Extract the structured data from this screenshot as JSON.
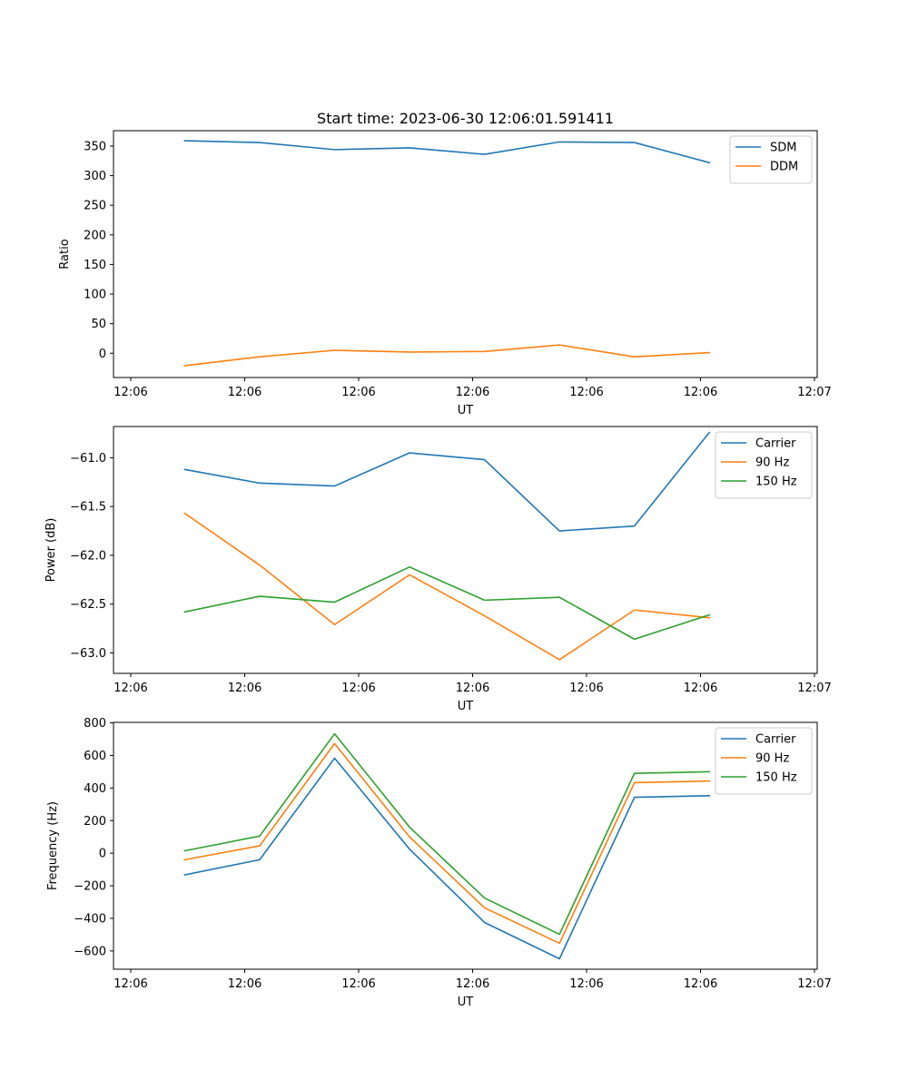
{
  "colors": {
    "blue": "#1f77b4",
    "orange": "#ff7f0e",
    "green": "#2ca02c"
  },
  "chart_data": [
    {
      "type": "line",
      "title": "Start time: 2023-06-30 12:06:01.591411",
      "xlabel": "UT",
      "ylabel": "Ratio",
      "xtick_labels": [
        "12:06",
        "12:06",
        "12:06",
        "12:06",
        "12:06",
        "12:06",
        "12:07"
      ],
      "yticks": [
        0,
        50,
        100,
        150,
        200,
        250,
        300,
        350
      ],
      "ylim": [
        -41,
        376
      ],
      "x": [
        1,
        2,
        3,
        4,
        5,
        6,
        7,
        8
      ],
      "grid": false,
      "legend": "upper right",
      "series": [
        {
          "name": "SDM",
          "color": "#1f77b4",
          "values": [
            359,
            356,
            344,
            347,
            336,
            357,
            356,
            322
          ]
        },
        {
          "name": "DDM",
          "color": "#ff7f0e",
          "values": [
            -21,
            -6,
            5,
            2,
            3,
            14,
            -6,
            1
          ]
        }
      ]
    },
    {
      "type": "line",
      "title": "",
      "xlabel": "UT",
      "ylabel": "Power (dB)",
      "xtick_labels": [
        "12:06",
        "12:06",
        "12:06",
        "12:06",
        "12:06",
        "12:06",
        "12:07"
      ],
      "yticks": [
        -63.0,
        -62.5,
        -62.0,
        -61.5,
        -61.0
      ],
      "ytick_labels": [
        "−63.0",
        "−62.5",
        "−62.0",
        "−61.5",
        "−61.0"
      ],
      "ylim": [
        -63.21,
        -60.68
      ],
      "x": [
        1,
        2,
        3,
        4,
        5,
        6,
        7,
        8
      ],
      "grid": false,
      "legend": "upper right",
      "series": [
        {
          "name": "Carrier",
          "color": "#1f77b4",
          "values": [
            -61.12,
            -61.26,
            -61.29,
            -60.95,
            -61.02,
            -61.75,
            -61.7,
            -60.74
          ]
        },
        {
          "name": "90 Hz",
          "color": "#ff7f0e",
          "values": [
            -61.57,
            -62.1,
            -62.71,
            -62.2,
            -62.62,
            -63.07,
            -62.56,
            -62.64
          ]
        },
        {
          "name": "150 Hz",
          "color": "#2ca02c",
          "values": [
            -62.58,
            -62.42,
            -62.48,
            -62.12,
            -62.46,
            -62.43,
            -62.86,
            -62.61
          ]
        }
      ]
    },
    {
      "type": "line",
      "title": "",
      "xlabel": "UT",
      "ylabel": "Frequency (Hz)",
      "xtick_labels": [
        "12:06",
        "12:06",
        "12:06",
        "12:06",
        "12:06",
        "12:06",
        "12:07"
      ],
      "yticks": [
        -600,
        -400,
        -200,
        0,
        200,
        400,
        600,
        800
      ],
      "ytick_labels": [
        "−600",
        "−400",
        "−200",
        "0",
        "200",
        "400",
        "600",
        "800"
      ],
      "ylim": [
        -712,
        803
      ],
      "x": [
        1,
        2,
        3,
        4,
        5,
        6,
        7,
        8
      ],
      "grid": false,
      "legend": "upper right",
      "series": [
        {
          "name": "Carrier",
          "color": "#1f77b4",
          "values": [
            -133,
            -40,
            583,
            25,
            -425,
            -648,
            343,
            353
          ]
        },
        {
          "name": "90 Hz",
          "color": "#ff7f0e",
          "values": [
            -40,
            45,
            673,
            100,
            -335,
            -553,
            433,
            443
          ]
        },
        {
          "name": "150 Hz",
          "color": "#2ca02c",
          "values": [
            15,
            105,
            733,
            160,
            -275,
            -498,
            490,
            500
          ]
        }
      ]
    }
  ]
}
